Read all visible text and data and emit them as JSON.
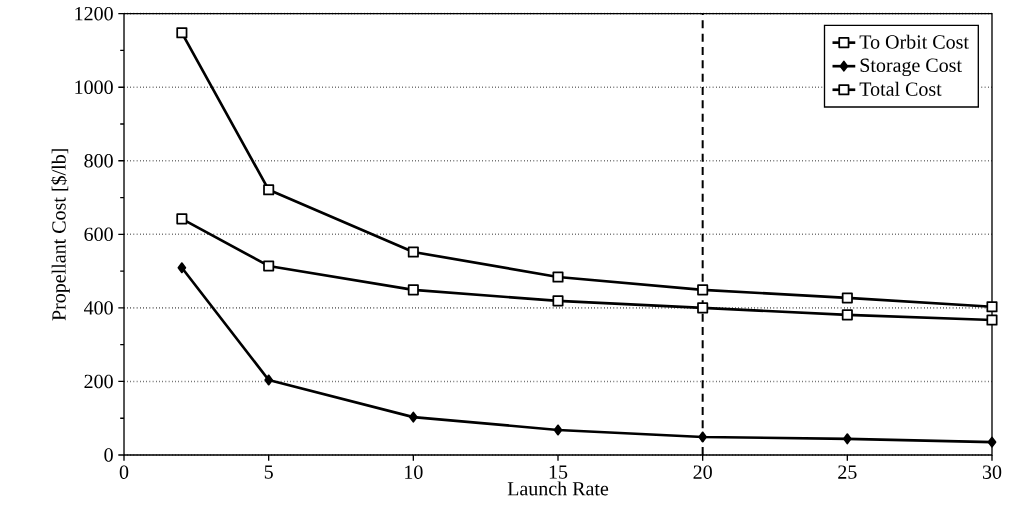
{
  "chart_data": {
    "type": "line",
    "xlabel": "Launch Rate",
    "ylabel": "Propellant Cost [$/lb]",
    "xlim": [
      0,
      30
    ],
    "xticks": [
      0,
      5,
      10,
      15,
      20,
      25,
      30
    ],
    "ylim": [
      0,
      1200
    ],
    "yticks": [
      0,
      200,
      400,
      600,
      800,
      1000,
      1200
    ],
    "grid": "y",
    "legend": "top right",
    "line_style": "solid",
    "ref_lines": [
      {
        "axis": "x",
        "value": 20,
        "line_style": "dashed",
        "color": "#000000"
      }
    ],
    "series": [
      {
        "name": "To Orbit Cost",
        "color": "#000000",
        "marker": "square",
        "x": [
          2,
          5,
          10,
          15,
          20,
          25,
          30
        ],
        "values": [
          642,
          514,
          449,
          419,
          400,
          381,
          367
        ]
      },
      {
        "name": "Storage Cost",
        "color": "#000000",
        "marker": "diamond",
        "x": [
          2,
          5,
          10,
          15,
          20,
          25,
          30
        ],
        "values": [
          509,
          204,
          103,
          68,
          49,
          44,
          35
        ]
      },
      {
        "name": "Total Cost",
        "color": "#000000",
        "marker": "square",
        "x": [
          2,
          5,
          10,
          15,
          20,
          25,
          30
        ],
        "values": [
          1148,
          721,
          552,
          484,
          449,
          427,
          403
        ]
      }
    ]
  }
}
